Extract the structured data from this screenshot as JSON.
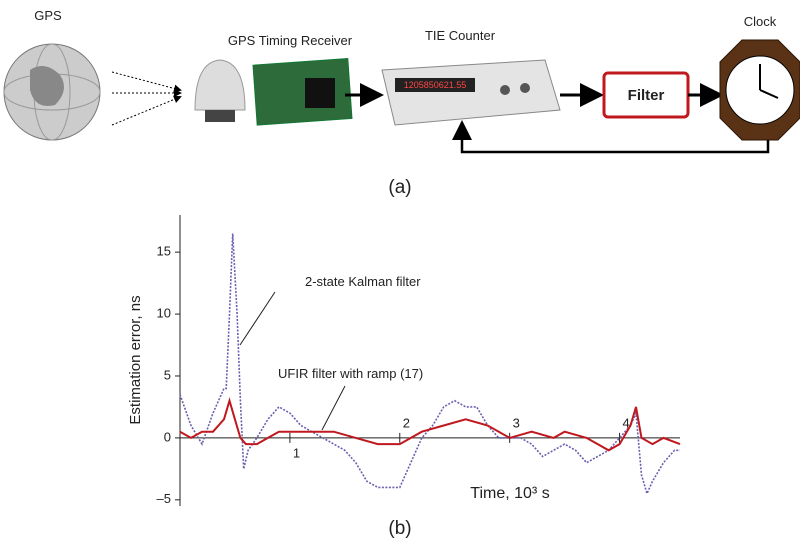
{
  "diagram": {
    "nodes": [
      {
        "label": "GPS"
      },
      {
        "label": "GPS Timing Receiver"
      },
      {
        "label": "TIE Counter"
      },
      {
        "label": "Filter"
      },
      {
        "label": "Clock"
      }
    ],
    "counter_display": "1205850621.55",
    "caption": "(a)"
  },
  "chart_data": {
    "type": "line",
    "caption": "(b)",
    "ylabel": "Estimation error, ns",
    "xlabel": "Time, 10³ s",
    "xlim": [
      0,
      4.55
    ],
    "ylim": [
      -5.5,
      18
    ],
    "xticks": [
      1,
      2,
      3,
      4
    ],
    "yticks": [
      {
        "value": -5,
        "label": "–5"
      },
      0,
      5,
      10,
      15
    ],
    "grid": false,
    "annotations": [
      {
        "text": "2-state Kalman filter"
      },
      {
        "text": "UFIR filter with ramp (17)"
      }
    ],
    "series": [
      {
        "name": "2-state Kalman filter",
        "color": "#6a5fb0",
        "dash": true,
        "x": [
          0,
          0.1,
          0.2,
          0.3,
          0.4,
          0.42,
          0.45,
          0.48,
          0.52,
          0.55,
          0.58,
          0.62,
          0.7,
          0.8,
          0.9,
          1.0,
          1.1,
          1.2,
          1.3,
          1.4,
          1.5,
          1.6,
          1.7,
          1.8,
          1.9,
          2.0,
          2.1,
          2.2,
          2.3,
          2.4,
          2.5,
          2.6,
          2.7,
          2.8,
          2.9,
          3.0,
          3.1,
          3.2,
          3.3,
          3.4,
          3.5,
          3.6,
          3.7,
          3.8,
          3.9,
          4.0,
          4.1,
          4.15,
          4.2,
          4.25,
          4.3,
          4.4,
          4.5,
          4.55
        ],
        "values": [
          3.5,
          1,
          -0.5,
          2,
          4,
          4,
          10,
          16.5,
          10,
          3,
          -2.5,
          -1,
          0,
          1.5,
          2.5,
          2,
          1,
          0.5,
          0,
          -0.5,
          -1,
          -2,
          -3.5,
          -4,
          -4,
          -4,
          -2,
          0,
          1,
          2.5,
          3,
          2.5,
          2.5,
          1,
          0,
          0,
          0,
          -0.5,
          -1.5,
          -1,
          -0.5,
          -1,
          -2,
          -1.5,
          -1,
          0,
          1,
          2,
          -3,
          -4.5,
          -3.5,
          -2,
          -1,
          -1
        ]
      },
      {
        "name": "UFIR filter with ramp (17)",
        "color": "#c0181f",
        "dash": false,
        "x": [
          0,
          0.1,
          0.2,
          0.3,
          0.4,
          0.45,
          0.5,
          0.55,
          0.6,
          0.7,
          0.8,
          0.9,
          1.0,
          1.2,
          1.4,
          1.6,
          1.8,
          2.0,
          2.2,
          2.4,
          2.6,
          2.8,
          3.0,
          3.2,
          3.4,
          3.5,
          3.7,
          3.9,
          4.0,
          4.1,
          4.15,
          4.2,
          4.3,
          4.4,
          4.55
        ],
        "values": [
          0.5,
          0,
          0.5,
          0.5,
          1.5,
          3,
          1.5,
          0,
          -0.5,
          -0.5,
          0,
          0.5,
          0.5,
          0.5,
          0.5,
          0,
          -0.5,
          -0.5,
          0.5,
          1,
          1.5,
          1,
          0,
          0.5,
          0,
          0.5,
          0,
          -1,
          -0.5,
          1,
          2.5,
          0,
          -0.5,
          0,
          -0.5
        ]
      }
    ]
  }
}
